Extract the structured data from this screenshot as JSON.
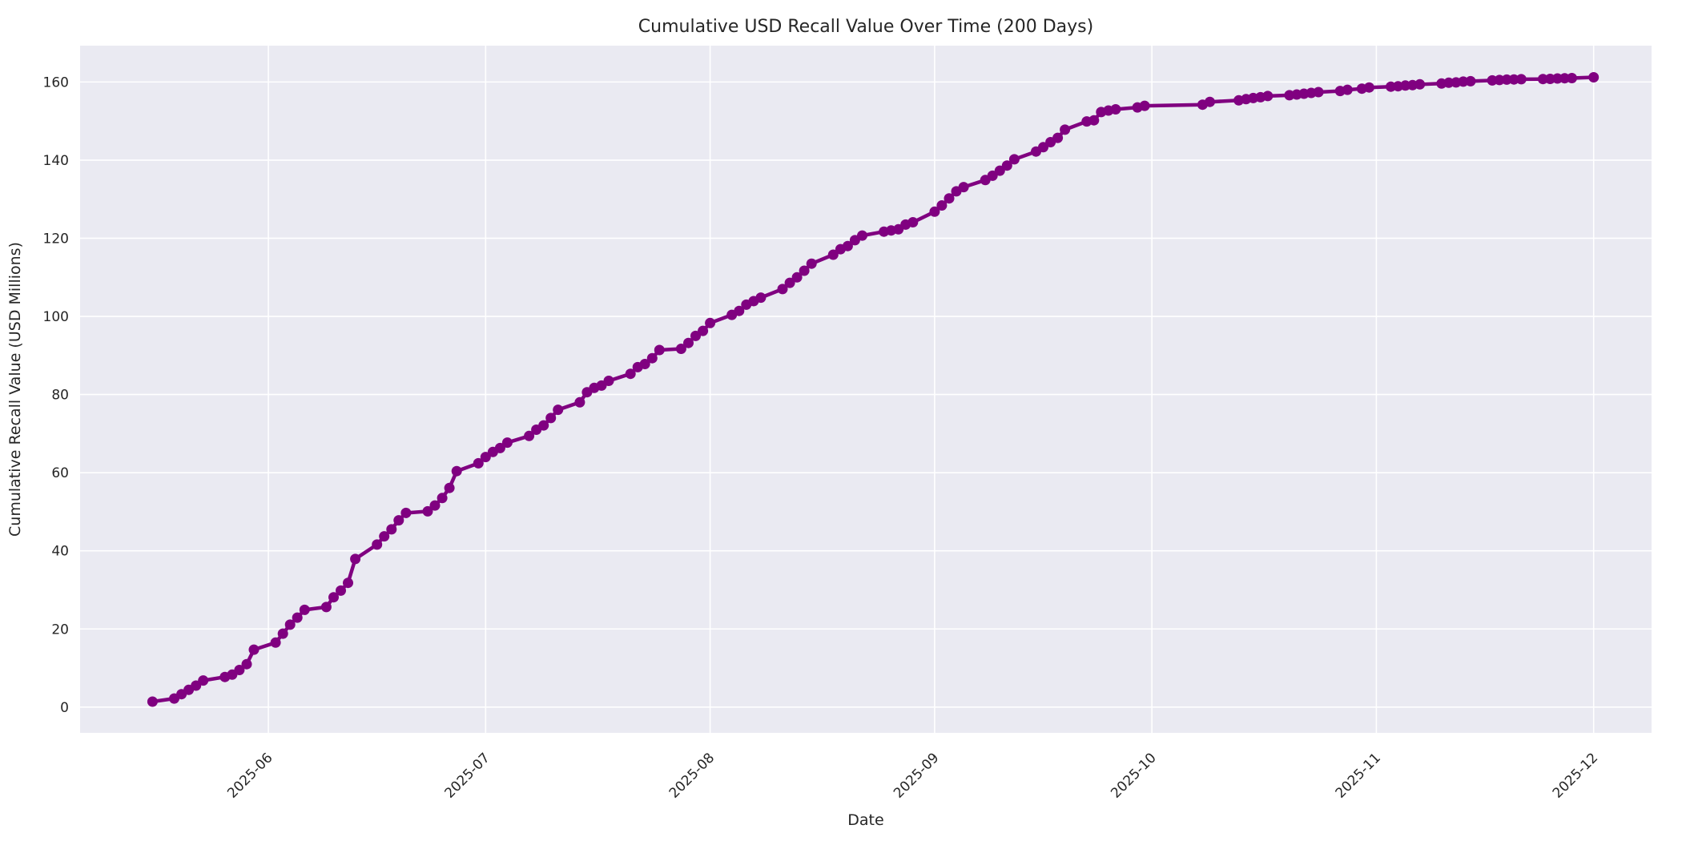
{
  "chart_data": {
    "type": "line",
    "title": "Cumulative USD Recall Value Over Time (200 Days)",
    "xlabel": "Date",
    "ylabel": "Cumulative Recall Value (USD Millions)",
    "legend_position": "none",
    "grid": true,
    "style": {
      "axes_background": "#EAEAF2",
      "figure_background": "#FFFFFF",
      "grid_color": "#FFFFFF",
      "line_color": "#800080",
      "marker_color": "#800080",
      "text_color": "#262626",
      "marker": "circle",
      "marker_radius": 6.5,
      "line_width": 4.5
    },
    "x_range": [
      "2025-05-06",
      "2025-12-09"
    ],
    "y_range": [
      -6.6,
      169.3
    ],
    "y_ticks": [
      0,
      20,
      40,
      60,
      80,
      100,
      120,
      140,
      160
    ],
    "x_ticks": [
      {
        "label": "2025-06",
        "date": "2025-06-01"
      },
      {
        "label": "2025-07",
        "date": "2025-07-01"
      },
      {
        "label": "2025-08",
        "date": "2025-08-01"
      },
      {
        "label": "2025-09",
        "date": "2025-09-01"
      },
      {
        "label": "2025-10",
        "date": "2025-10-01"
      },
      {
        "label": "2025-11",
        "date": "2025-11-01"
      },
      {
        "label": "2025-12",
        "date": "2025-12-01"
      }
    ],
    "series": [
      {
        "name": "Cumulative Recall Value (USD Millions)",
        "points": [
          [
            "2025-05-16",
            1.4
          ],
          [
            "2025-05-19",
            2.2
          ],
          [
            "2025-05-20",
            3.3
          ],
          [
            "2025-05-21",
            4.4
          ],
          [
            "2025-05-22",
            5.5
          ],
          [
            "2025-05-23",
            6.8
          ],
          [
            "2025-05-26",
            7.7
          ],
          [
            "2025-05-27",
            8.3
          ],
          [
            "2025-05-28",
            9.5
          ],
          [
            "2025-05-29",
            11.0
          ],
          [
            "2025-05-30",
            14.7
          ],
          [
            "2025-06-02",
            16.5
          ],
          [
            "2025-06-03",
            18.8
          ],
          [
            "2025-06-04",
            21.1
          ],
          [
            "2025-06-05",
            22.9
          ],
          [
            "2025-06-06",
            24.9
          ],
          [
            "2025-06-09",
            25.6
          ],
          [
            "2025-06-10",
            28.1
          ],
          [
            "2025-06-11",
            29.8
          ],
          [
            "2025-06-12",
            31.8
          ],
          [
            "2025-06-13",
            37.9
          ],
          [
            "2025-06-16",
            41.6
          ],
          [
            "2025-06-17",
            43.7
          ],
          [
            "2025-06-18",
            45.5
          ],
          [
            "2025-06-19",
            47.8
          ],
          [
            "2025-06-20",
            49.7
          ],
          [
            "2025-06-23",
            50.1
          ],
          [
            "2025-06-24",
            51.6
          ],
          [
            "2025-06-25",
            53.5
          ],
          [
            "2025-06-26",
            56.1
          ],
          [
            "2025-06-27",
            60.4
          ],
          [
            "2025-06-30",
            62.4
          ],
          [
            "2025-07-01",
            64.0
          ],
          [
            "2025-07-02",
            65.3
          ],
          [
            "2025-07-03",
            66.3
          ],
          [
            "2025-07-04",
            67.7
          ],
          [
            "2025-07-07",
            69.4
          ],
          [
            "2025-07-08",
            71.0
          ],
          [
            "2025-07-09",
            72.1
          ],
          [
            "2025-07-10",
            74.0
          ],
          [
            "2025-07-11",
            76.1
          ],
          [
            "2025-07-14",
            78.0
          ],
          [
            "2025-07-15",
            80.6
          ],
          [
            "2025-07-16",
            81.7
          ],
          [
            "2025-07-17",
            82.3
          ],
          [
            "2025-07-18",
            83.5
          ],
          [
            "2025-07-21",
            85.3
          ],
          [
            "2025-07-22",
            87.0
          ],
          [
            "2025-07-23",
            87.8
          ],
          [
            "2025-07-24",
            89.3
          ],
          [
            "2025-07-25",
            91.4
          ],
          [
            "2025-07-28",
            91.7
          ],
          [
            "2025-07-29",
            93.2
          ],
          [
            "2025-07-30",
            95.0
          ],
          [
            "2025-07-31",
            96.3
          ],
          [
            "2025-08-01",
            98.3
          ],
          [
            "2025-08-04",
            100.4
          ],
          [
            "2025-08-05",
            101.4
          ],
          [
            "2025-08-06",
            103.0
          ],
          [
            "2025-08-07",
            103.9
          ],
          [
            "2025-08-08",
            104.8
          ],
          [
            "2025-08-11",
            107.0
          ],
          [
            "2025-08-12",
            108.6
          ],
          [
            "2025-08-13",
            110.0
          ],
          [
            "2025-08-14",
            111.7
          ],
          [
            "2025-08-15",
            113.5
          ],
          [
            "2025-08-18",
            115.8
          ],
          [
            "2025-08-19",
            117.2
          ],
          [
            "2025-08-20",
            118.0
          ],
          [
            "2025-08-21",
            119.5
          ],
          [
            "2025-08-22",
            120.7
          ],
          [
            "2025-08-25",
            121.7
          ],
          [
            "2025-08-26",
            122.0
          ],
          [
            "2025-08-27",
            122.3
          ],
          [
            "2025-08-28",
            123.5
          ],
          [
            "2025-08-29",
            124.1
          ],
          [
            "2025-09-01",
            126.8
          ],
          [
            "2025-09-02",
            128.4
          ],
          [
            "2025-09-03",
            130.2
          ],
          [
            "2025-09-04",
            132.0
          ],
          [
            "2025-09-05",
            133.1
          ],
          [
            "2025-09-08",
            134.9
          ],
          [
            "2025-09-09",
            136.0
          ],
          [
            "2025-09-10",
            137.3
          ],
          [
            "2025-09-11",
            138.6
          ],
          [
            "2025-09-12",
            140.2
          ],
          [
            "2025-09-15",
            142.2
          ],
          [
            "2025-09-16",
            143.3
          ],
          [
            "2025-09-17",
            144.6
          ],
          [
            "2025-09-18",
            145.7
          ],
          [
            "2025-09-19",
            147.8
          ],
          [
            "2025-09-22",
            149.9
          ],
          [
            "2025-09-23",
            150.2
          ],
          [
            "2025-09-24",
            152.3
          ],
          [
            "2025-09-25",
            152.7
          ],
          [
            "2025-09-26",
            153.0
          ],
          [
            "2025-09-29",
            153.5
          ],
          [
            "2025-09-30",
            153.9
          ],
          [
            "2025-10-08",
            154.2
          ],
          [
            "2025-10-09",
            154.9
          ],
          [
            "2025-10-13",
            155.3
          ],
          [
            "2025-10-14",
            155.6
          ],
          [
            "2025-10-15",
            155.9
          ],
          [
            "2025-10-16",
            156.1
          ],
          [
            "2025-10-17",
            156.4
          ],
          [
            "2025-10-20",
            156.6
          ],
          [
            "2025-10-21",
            156.8
          ],
          [
            "2025-10-22",
            157.0
          ],
          [
            "2025-10-23",
            157.2
          ],
          [
            "2025-10-24",
            157.4
          ],
          [
            "2025-10-27",
            157.7
          ],
          [
            "2025-10-28",
            158.0
          ],
          [
            "2025-10-30",
            158.3
          ],
          [
            "2025-10-31",
            158.6
          ],
          [
            "2025-11-03",
            158.8
          ],
          [
            "2025-11-04",
            158.9
          ],
          [
            "2025-11-05",
            159.1
          ],
          [
            "2025-11-06",
            159.2
          ],
          [
            "2025-11-07",
            159.4
          ],
          [
            "2025-11-10",
            159.6
          ],
          [
            "2025-11-11",
            159.8
          ],
          [
            "2025-11-12",
            159.9
          ],
          [
            "2025-11-13",
            160.1
          ],
          [
            "2025-11-14",
            160.2
          ],
          [
            "2025-11-17",
            160.4
          ],
          [
            "2025-11-18",
            160.5
          ],
          [
            "2025-11-19",
            160.6
          ],
          [
            "2025-11-20",
            160.65
          ],
          [
            "2025-11-21",
            160.7
          ],
          [
            "2025-11-24",
            160.75
          ],
          [
            "2025-11-25",
            160.8
          ],
          [
            "2025-11-26",
            160.9
          ],
          [
            "2025-11-27",
            160.95
          ],
          [
            "2025-11-28",
            161.0
          ],
          [
            "2025-12-01",
            161.2
          ]
        ]
      }
    ]
  }
}
